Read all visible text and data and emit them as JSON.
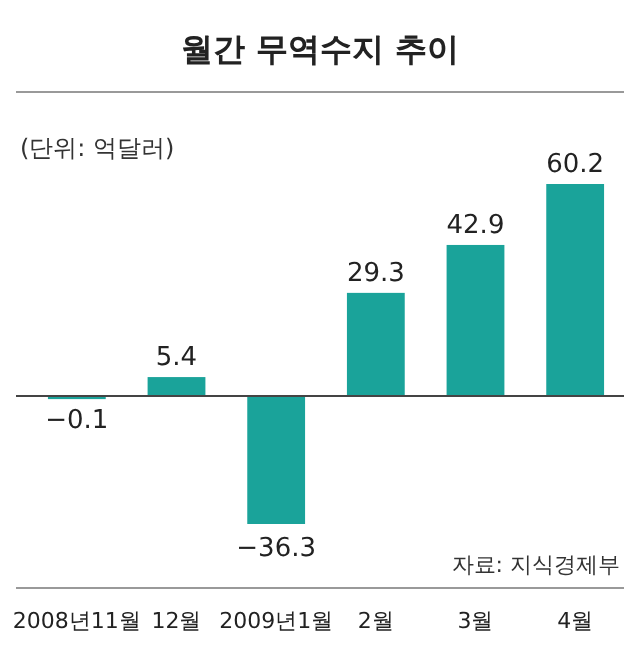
{
  "chart_data": {
    "type": "bar",
    "title": "월간 무역수지 추이",
    "subtitle": "(단위: 억달러)",
    "annotations": [
      "자료: 지식경제부"
    ],
    "categories": [
      "2008년11월",
      "12월",
      "2009년1월",
      "2월",
      "3월",
      "4월"
    ],
    "values": [
      -0.1,
      5.4,
      -36.3,
      29.3,
      42.9,
      60.2
    ],
    "color": "#1aa39a",
    "data_labels": true
  }
}
